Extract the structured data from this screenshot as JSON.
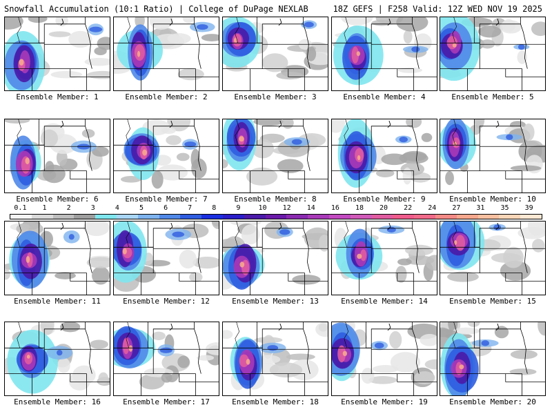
{
  "header": {
    "left_title": "Snowfall Accumulation (10:1 Ratio) | College of DuPage NEXLAB",
    "right_title": "18Z GEFS | F258 Valid: 12Z WED NOV 19 2025"
  },
  "panels": [
    {
      "label": "Ensemble Member: 1"
    },
    {
      "label": "Ensemble Member: 2"
    },
    {
      "label": "Ensemble Member: 3"
    },
    {
      "label": "Ensemble Member: 4"
    },
    {
      "label": "Ensemble Member: 5"
    },
    {
      "label": "Ensemble Member: 6"
    },
    {
      "label": "Ensemble Member: 7"
    },
    {
      "label": "Ensemble Member: 8"
    },
    {
      "label": "Ensemble Member: 9"
    },
    {
      "label": "Ensemble Member: 10"
    },
    {
      "label": "Ensemble Member: 11"
    },
    {
      "label": "Ensemble Member: 12"
    },
    {
      "label": "Ensemble Member: 13"
    },
    {
      "label": "Ensemble Member: 14"
    },
    {
      "label": "Ensemble Member: 15"
    },
    {
      "label": "Ensemble Member: 16"
    },
    {
      "label": "Ensemble Member: 17"
    },
    {
      "label": "Ensemble Member: 18"
    },
    {
      "label": "Ensemble Member: 19"
    },
    {
      "label": "Ensemble Member: 20"
    }
  ],
  "colorbar": {
    "labels": [
      "0.1",
      "1",
      "2",
      "3",
      "4",
      "5",
      "6",
      "7",
      "8",
      "9",
      "10",
      "12",
      "14",
      "16",
      "18",
      "20",
      "22",
      "24",
      "27",
      "31",
      "35",
      "39"
    ],
    "colors": [
      "#f4f4f4",
      "#d9d9d9",
      "#bdbdbd",
      "#9e9e9e",
      "#7fe6ee",
      "#a9d6f5",
      "#7eb3ee",
      "#5088e8",
      "#2f5de0",
      "#1a2fe0",
      "#2a1ec8",
      "#4a1aa8",
      "#6a1aa8",
      "#8a2ab0",
      "#a83ab8",
      "#c24ac0",
      "#d05ab8",
      "#e05ca0",
      "#ee5c8c",
      "#f06a8a",
      "#f38a86",
      "#f6a88e",
      "#f8c0a0",
      "#fad6b8",
      "#fce8d4"
    ]
  }
}
